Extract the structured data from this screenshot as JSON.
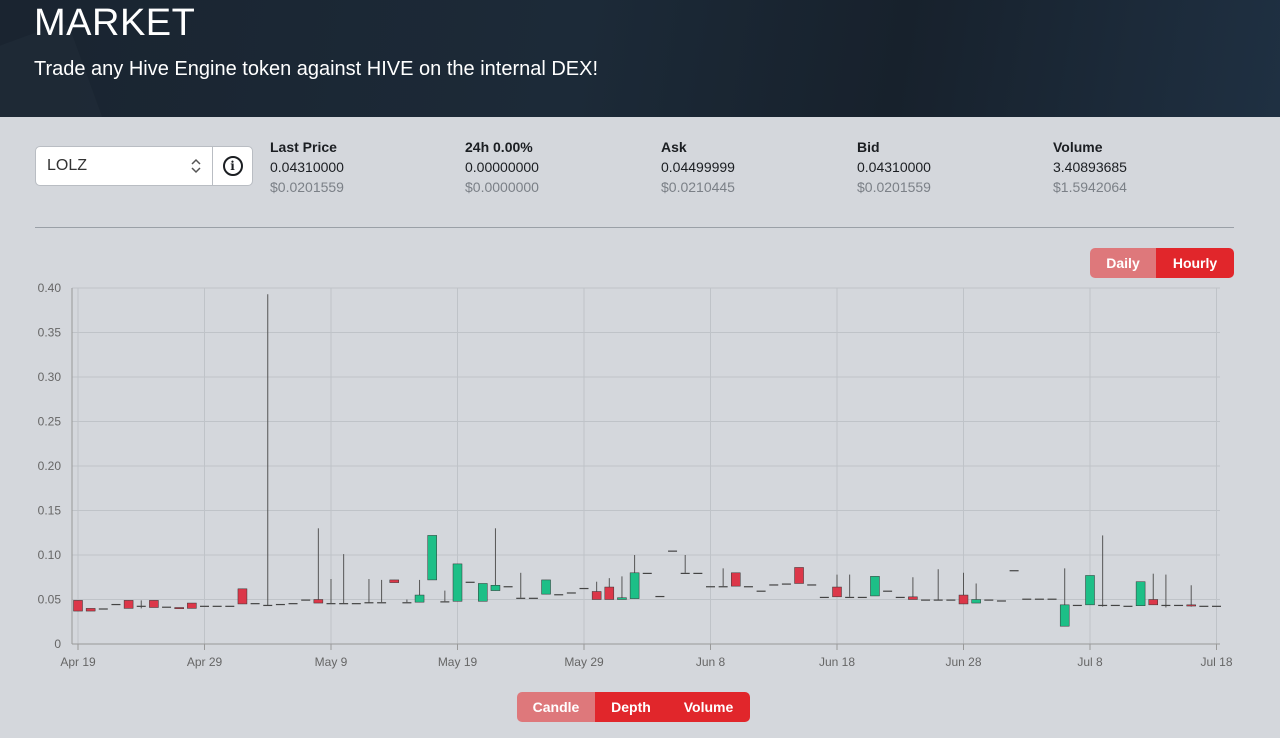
{
  "header": {
    "title": "MARKET",
    "subtitle": "Trade any Hive Engine token against HIVE on the internal DEX!"
  },
  "token_select": {
    "value": "LOLZ"
  },
  "stats": [
    {
      "label": "Last Price",
      "value": "0.04310000",
      "usd": "$0.0201559"
    },
    {
      "label": "24h 0.00%",
      "value": "0.00000000",
      "usd": "$0.0000000"
    },
    {
      "label": "Ask",
      "value": "0.04499999",
      "usd": "$0.0210445"
    },
    {
      "label": "Bid",
      "value": "0.04310000",
      "usd": "$0.0201559"
    },
    {
      "label": "Volume",
      "value": "3.40893685",
      "usd": "$1.5942064"
    }
  ],
  "interval_buttons": {
    "daily": "Daily",
    "hourly": "Hourly",
    "active": "hourly"
  },
  "chart_buttons": {
    "candle": "Candle",
    "depth": "Depth",
    "volume": "Volume",
    "active": [
      "depth",
      "volume"
    ]
  },
  "colors": {
    "up": "#1dbf87",
    "down": "#dc3749",
    "accent": "#e1262b",
    "accent_inactive": "#de787b"
  },
  "chart_data": {
    "type": "candlestick",
    "ylim": [
      0,
      0.4
    ],
    "yticks": [
      "0",
      "0.05",
      "0.10",
      "0.15",
      "0.20",
      "0.25",
      "0.30",
      "0.35",
      "0.40"
    ],
    "xticks": [
      "Apr 19",
      "Apr 29",
      "May 9",
      "May 19",
      "May 29",
      "Jun 8",
      "Jun 18",
      "Jun 28",
      "Jul 8",
      "Jul 18"
    ],
    "x_start": "Apr 19",
    "x_end": "Jul 18",
    "grid": true,
    "candles": [
      {
        "x": "2021-04-19",
        "o": 0.049,
        "h": 0.049,
        "l": 0.037,
        "c": 0.037
      },
      {
        "x": "2021-04-20",
        "o": 0.04,
        "h": 0.04,
        "l": 0.037,
        "c": 0.037
      },
      {
        "x": "2021-04-21",
        "o": 0.04,
        "h": 0.04,
        "l": 0.04,
        "c": 0.04
      },
      {
        "x": "2021-04-22",
        "o": 0.045,
        "h": 0.045,
        "l": 0.045,
        "c": 0.045
      },
      {
        "x": "2021-04-23",
        "o": 0.049,
        "h": 0.049,
        "l": 0.04,
        "c": 0.04
      },
      {
        "x": "2021-04-24",
        "o": 0.043,
        "h": 0.049,
        "l": 0.04,
        "c": 0.043
      },
      {
        "x": "2021-04-25",
        "o": 0.049,
        "h": 0.049,
        "l": 0.041,
        "c": 0.041
      },
      {
        "x": "2021-04-26",
        "o": 0.042,
        "h": 0.042,
        "l": 0.042,
        "c": 0.042
      },
      {
        "x": "2021-04-27",
        "o": 0.041,
        "h": 0.041,
        "l": 0.04,
        "c": 0.04
      },
      {
        "x": "2021-04-28",
        "o": 0.046,
        "h": 0.046,
        "l": 0.04,
        "c": 0.04
      },
      {
        "x": "2021-04-29",
        "o": 0.043,
        "h": 0.043,
        "l": 0.043,
        "c": 0.043
      },
      {
        "x": "2021-04-30",
        "o": 0.043,
        "h": 0.043,
        "l": 0.043,
        "c": 0.043
      },
      {
        "x": "2021-05-01",
        "o": 0.043,
        "h": 0.043,
        "l": 0.043,
        "c": 0.043
      },
      {
        "x": "2021-05-02",
        "o": 0.062,
        "h": 0.062,
        "l": 0.045,
        "c": 0.045
      },
      {
        "x": "2021-05-03",
        "o": 0.046,
        "h": 0.046,
        "l": 0.046,
        "c": 0.046
      },
      {
        "x": "2021-05-04",
        "o": 0.044,
        "h": 0.393,
        "l": 0.043,
        "c": 0.044
      },
      {
        "x": "2021-05-05",
        "o": 0.045,
        "h": 0.045,
        "l": 0.045,
        "c": 0.045
      },
      {
        "x": "2021-05-06",
        "o": 0.046,
        "h": 0.046,
        "l": 0.046,
        "c": 0.046
      },
      {
        "x": "2021-05-07",
        "o": 0.05,
        "h": 0.05,
        "l": 0.05,
        "c": 0.05
      },
      {
        "x": "2021-05-08",
        "o": 0.05,
        "h": 0.13,
        "l": 0.046,
        "c": 0.046
      },
      {
        "x": "2021-05-09",
        "o": 0.046,
        "h": 0.073,
        "l": 0.046,
        "c": 0.046
      },
      {
        "x": "2021-05-10",
        "o": 0.046,
        "h": 0.101,
        "l": 0.046,
        "c": 0.046
      },
      {
        "x": "2021-05-11",
        "o": 0.046,
        "h": 0.046,
        "l": 0.046,
        "c": 0.046
      },
      {
        "x": "2021-05-12",
        "o": 0.047,
        "h": 0.073,
        "l": 0.046,
        "c": 0.047
      },
      {
        "x": "2021-05-13",
        "o": 0.047,
        "h": 0.072,
        "l": 0.047,
        "c": 0.047
      },
      {
        "x": "2021-05-14",
        "o": 0.072,
        "h": 0.072,
        "l": 0.069,
        "c": 0.069
      },
      {
        "x": "2021-05-15",
        "o": 0.047,
        "h": 0.05,
        "l": 0.047,
        "c": 0.047
      },
      {
        "x": "2021-05-16",
        "o": 0.047,
        "h": 0.072,
        "l": 0.047,
        "c": 0.055
      },
      {
        "x": "2021-05-17",
        "o": 0.072,
        "h": 0.122,
        "l": 0.072,
        "c": 0.122
      },
      {
        "x": "2021-05-18",
        "o": 0.048,
        "h": 0.06,
        "l": 0.048,
        "c": 0.048
      },
      {
        "x": "2021-05-19",
        "o": 0.048,
        "h": 0.09,
        "l": 0.048,
        "c": 0.09
      },
      {
        "x": "2021-05-20",
        "o": 0.07,
        "h": 0.07,
        "l": 0.07,
        "c": 0.07
      },
      {
        "x": "2021-05-21",
        "o": 0.048,
        "h": 0.068,
        "l": 0.048,
        "c": 0.068
      },
      {
        "x": "2021-05-22",
        "o": 0.06,
        "h": 0.13,
        "l": 0.06,
        "c": 0.066
      },
      {
        "x": "2021-05-23",
        "o": 0.065,
        "h": 0.065,
        "l": 0.065,
        "c": 0.065
      },
      {
        "x": "2021-05-24",
        "o": 0.052,
        "h": 0.08,
        "l": 0.052,
        "c": 0.052
      },
      {
        "x": "2021-05-25",
        "o": 0.052,
        "h": 0.052,
        "l": 0.052,
        "c": 0.052
      },
      {
        "x": "2021-05-26",
        "o": 0.056,
        "h": 0.072,
        "l": 0.056,
        "c": 0.072
      },
      {
        "x": "2021-05-27",
        "o": 0.056,
        "h": 0.056,
        "l": 0.056,
        "c": 0.056
      },
      {
        "x": "2021-05-28",
        "o": 0.058,
        "h": 0.058,
        "l": 0.058,
        "c": 0.058
      },
      {
        "x": "2021-05-29",
        "o": 0.063,
        "h": 0.063,
        "l": 0.063,
        "c": 0.063
      },
      {
        "x": "2021-05-30",
        "o": 0.059,
        "h": 0.07,
        "l": 0.05,
        "c": 0.05
      },
      {
        "x": "2021-05-31",
        "o": 0.064,
        "h": 0.074,
        "l": 0.05,
        "c": 0.05
      },
      {
        "x": "2021-06-01",
        "o": 0.05,
        "h": 0.076,
        "l": 0.05,
        "c": 0.052
      },
      {
        "x": "2021-06-02",
        "o": 0.051,
        "h": 0.1,
        "l": 0.051,
        "c": 0.08
      },
      {
        "x": "2021-06-03",
        "o": 0.08,
        "h": 0.08,
        "l": 0.08,
        "c": 0.08
      },
      {
        "x": "2021-06-04",
        "o": 0.054,
        "h": 0.054,
        "l": 0.054,
        "c": 0.054
      },
      {
        "x": "2021-06-05",
        "o": 0.105,
        "h": 0.105,
        "l": 0.105,
        "c": 0.105
      },
      {
        "x": "2021-06-06",
        "o": 0.08,
        "h": 0.1,
        "l": 0.08,
        "c": 0.08
      },
      {
        "x": "2021-06-07",
        "o": 0.08,
        "h": 0.08,
        "l": 0.08,
        "c": 0.08
      },
      {
        "x": "2021-06-08",
        "o": 0.065,
        "h": 0.065,
        "l": 0.065,
        "c": 0.065
      },
      {
        "x": "2021-06-09",
        "o": 0.065,
        "h": 0.085,
        "l": 0.065,
        "c": 0.065
      },
      {
        "x": "2021-06-10",
        "o": 0.08,
        "h": 0.08,
        "l": 0.065,
        "c": 0.065
      },
      {
        "x": "2021-06-11",
        "o": 0.065,
        "h": 0.065,
        "l": 0.065,
        "c": 0.065
      },
      {
        "x": "2021-06-12",
        "o": 0.06,
        "h": 0.06,
        "l": 0.06,
        "c": 0.06
      },
      {
        "x": "2021-06-13",
        "o": 0.067,
        "h": 0.067,
        "l": 0.067,
        "c": 0.067
      },
      {
        "x": "2021-06-14",
        "o": 0.068,
        "h": 0.068,
        "l": 0.068,
        "c": 0.068
      },
      {
        "x": "2021-06-15",
        "o": 0.086,
        "h": 0.086,
        "l": 0.068,
        "c": 0.068
      },
      {
        "x": "2021-06-16",
        "o": 0.067,
        "h": 0.067,
        "l": 0.067,
        "c": 0.067
      },
      {
        "x": "2021-06-17",
        "o": 0.053,
        "h": 0.053,
        "l": 0.053,
        "c": 0.053
      },
      {
        "x": "2021-06-18",
        "o": 0.064,
        "h": 0.078,
        "l": 0.053,
        "c": 0.053
      },
      {
        "x": "2021-06-19",
        "o": 0.053,
        "h": 0.078,
        "l": 0.053,
        "c": 0.053
      },
      {
        "x": "2021-06-20",
        "o": 0.053,
        "h": 0.053,
        "l": 0.053,
        "c": 0.053
      },
      {
        "x": "2021-06-21",
        "o": 0.054,
        "h": 0.076,
        "l": 0.054,
        "c": 0.076
      },
      {
        "x": "2021-06-22",
        "o": 0.06,
        "h": 0.06,
        "l": 0.06,
        "c": 0.06
      },
      {
        "x": "2021-06-23",
        "o": 0.053,
        "h": 0.053,
        "l": 0.053,
        "c": 0.053
      },
      {
        "x": "2021-06-24",
        "o": 0.053,
        "h": 0.075,
        "l": 0.05,
        "c": 0.05
      },
      {
        "x": "2021-06-25",
        "o": 0.05,
        "h": 0.05,
        "l": 0.05,
        "c": 0.05
      },
      {
        "x": "2021-06-26",
        "o": 0.05,
        "h": 0.084,
        "l": 0.05,
        "c": 0.05
      },
      {
        "x": "2021-06-27",
        "o": 0.05,
        "h": 0.05,
        "l": 0.05,
        "c": 0.05
      },
      {
        "x": "2021-06-28",
        "o": 0.055,
        "h": 0.08,
        "l": 0.045,
        "c": 0.045
      },
      {
        "x": "2021-06-29",
        "o": 0.046,
        "h": 0.068,
        "l": 0.046,
        "c": 0.05
      },
      {
        "x": "2021-06-30",
        "o": 0.05,
        "h": 0.05,
        "l": 0.05,
        "c": 0.05
      },
      {
        "x": "2021-07-01",
        "o": 0.049,
        "h": 0.049,
        "l": 0.049,
        "c": 0.049
      },
      {
        "x": "2021-07-02",
        "o": 0.083,
        "h": 0.083,
        "l": 0.083,
        "c": 0.083
      },
      {
        "x": "2021-07-03",
        "o": 0.051,
        "h": 0.051,
        "l": 0.051,
        "c": 0.051
      },
      {
        "x": "2021-07-04",
        "o": 0.051,
        "h": 0.051,
        "l": 0.051,
        "c": 0.051
      },
      {
        "x": "2021-07-05",
        "o": 0.051,
        "h": 0.051,
        "l": 0.051,
        "c": 0.051
      },
      {
        "x": "2021-07-06",
        "o": 0.02,
        "h": 0.085,
        "l": 0.02,
        "c": 0.044
      },
      {
        "x": "2021-07-07",
        "o": 0.044,
        "h": 0.044,
        "l": 0.044,
        "c": 0.044
      },
      {
        "x": "2021-07-08",
        "o": 0.044,
        "h": 0.077,
        "l": 0.044,
        "c": 0.077
      },
      {
        "x": "2021-07-09",
        "o": 0.044,
        "h": 0.122,
        "l": 0.042,
        "c": 0.044
      },
      {
        "x": "2021-07-10",
        "o": 0.044,
        "h": 0.044,
        "l": 0.044,
        "c": 0.044
      },
      {
        "x": "2021-07-11",
        "o": 0.043,
        "h": 0.043,
        "l": 0.043,
        "c": 0.043
      },
      {
        "x": "2021-07-12",
        "o": 0.043,
        "h": 0.07,
        "l": 0.043,
        "c": 0.07
      },
      {
        "x": "2021-07-13",
        "o": 0.05,
        "h": 0.079,
        "l": 0.044,
        "c": 0.044
      },
      {
        "x": "2021-07-14",
        "o": 0.044,
        "h": 0.078,
        "l": 0.041,
        "c": 0.044
      },
      {
        "x": "2021-07-15",
        "o": 0.044,
        "h": 0.044,
        "l": 0.044,
        "c": 0.044
      },
      {
        "x": "2021-07-16",
        "o": 0.044,
        "h": 0.066,
        "l": 0.042,
        "c": 0.043
      },
      {
        "x": "2021-07-17",
        "o": 0.043,
        "h": 0.043,
        "l": 0.043,
        "c": 0.043
      },
      {
        "x": "2021-07-18",
        "o": 0.043,
        "h": 0.043,
        "l": 0.043,
        "c": 0.043
      }
    ]
  }
}
